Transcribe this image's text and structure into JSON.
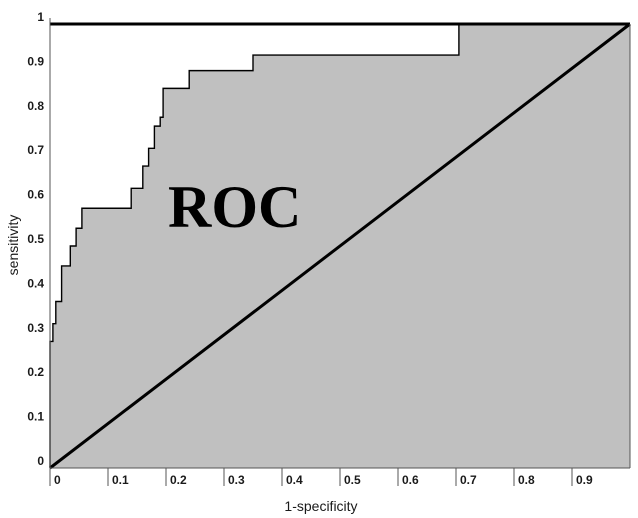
{
  "chart_data": {
    "type": "line",
    "title": "",
    "xlabel": "1-specificity",
    "ylabel": "sensitivity",
    "annotation": "ROC",
    "xlim": [
      0,
      1
    ],
    "ylim": [
      0,
      1
    ],
    "x_ticks": [
      0,
      0.1,
      0.2,
      0.3,
      0.4,
      0.5,
      0.6,
      0.7,
      0.8,
      0.9
    ],
    "x_tick_labels": [
      "0",
      "0.1",
      "0.2",
      "0.3",
      "0.4",
      "0.5",
      "0.6",
      "0.7",
      "0.8",
      "0.9"
    ],
    "y_ticks": [
      0,
      0.1,
      0.2,
      0.3,
      0.4,
      0.5,
      0.6,
      0.7,
      0.8,
      0.9,
      1
    ],
    "y_tick_labels": [
      "0",
      "0.1",
      "0.2",
      "0.3",
      "0.4",
      "0.5",
      "0.6",
      "0.7",
      "0.8",
      "0.9",
      "1"
    ],
    "grid": false,
    "area_fill_color": "#c0c0c0",
    "line_color": "#000000",
    "series": [
      {
        "kind": "roc-curve",
        "x": [
          0,
          0,
          0.005,
          0.005,
          0.01,
          0.01,
          0.02,
          0.02,
          0.035,
          0.035,
          0.045,
          0.045,
          0.055,
          0.055,
          0.065,
          0.065,
          0.075,
          0.075,
          0.14,
          0.14,
          0.16,
          0.16,
          0.17,
          0.17,
          0.18,
          0.18,
          0.19,
          0.19,
          0.195,
          0.195,
          0.24,
          0.24,
          0.35,
          0.35,
          0.705,
          0.705,
          1
        ],
        "y": [
          0,
          0.285,
          0.285,
          0.325,
          0.325,
          0.375,
          0.375,
          0.455,
          0.455,
          0.5,
          0.5,
          0.54,
          0.54,
          0.585,
          0.585,
          0.585,
          0.585,
          0.585,
          0.585,
          0.63,
          0.63,
          0.68,
          0.68,
          0.72,
          0.72,
          0.77,
          0.77,
          0.79,
          0.79,
          0.855,
          0.855,
          0.895,
          0.895,
          0.93,
          0.93,
          1,
          1
        ]
      },
      {
        "kind": "reference-diagonal",
        "x": [
          0,
          1
        ],
        "y": [
          0,
          1
        ]
      }
    ]
  }
}
